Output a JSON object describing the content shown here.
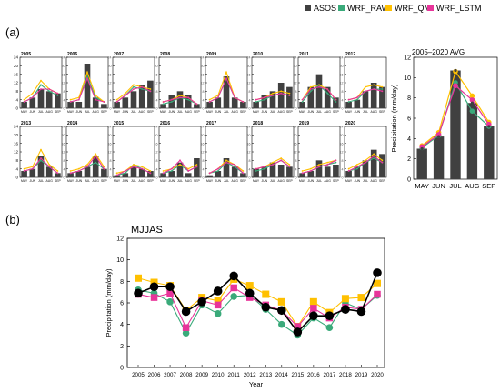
{
  "legend": [
    {
      "name": "ASOS",
      "color": "#404040",
      "shape": "square"
    },
    {
      "name": "WRF_RAW",
      "color": "#3aaa7a",
      "shape": "square"
    },
    {
      "name": "WRF_QM",
      "color": "#ffc000",
      "shape": "square"
    },
    {
      "name": "WRF_LSTM",
      "color": "#e8349a",
      "shape": "square"
    }
  ],
  "panel_labels": {
    "a": "(a)",
    "b": "(b)"
  },
  "chart_data": [
    {
      "type": "bar",
      "id": "yearly-small-multiples",
      "categories": [
        "MAY",
        "JUN",
        "JUL",
        "AUG",
        "SEP"
      ],
      "ylim": [
        0,
        24
      ],
      "yticks": [
        0,
        4,
        8,
        12,
        16,
        20,
        24
      ],
      "panels": [
        {
          "title": "2005",
          "ASOS": [
            3,
            5,
            9,
            8,
            7
          ],
          "WRF_RAW": [
            3,
            5,
            11,
            8,
            6
          ],
          "WRF_QM": [
            4,
            7,
            13,
            9,
            7
          ],
          "WRF_LSTM": [
            3,
            5,
            9,
            9,
            7
          ]
        },
        {
          "title": "2006",
          "ASOS": [
            3,
            3,
            21,
            5,
            2
          ],
          "WRF_RAW": [
            3,
            4,
            15,
            5,
            3
          ],
          "WRF_QM": [
            4,
            5,
            17,
            6,
            3
          ],
          "WRF_LSTM": [
            3,
            4,
            14,
            4,
            3
          ]
        },
        {
          "title": "2007",
          "ASOS": [
            3,
            5,
            8,
            11,
            13
          ],
          "WRF_RAW": [
            3,
            6,
            10,
            9,
            8
          ],
          "WRF_QM": [
            4,
            7,
            11,
            10,
            9
          ],
          "WRF_LSTM": [
            3,
            6,
            9,
            10,
            8
          ]
        },
        {
          "title": "2008",
          "ASOS": [
            2,
            6,
            8,
            6,
            2
          ],
          "WRF_RAW": [
            2,
            3,
            5,
            4,
            2
          ],
          "WRF_QM": [
            3,
            4,
            6,
            5,
            2
          ],
          "WRF_LSTM": [
            3,
            4,
            5,
            5,
            2
          ]
        },
        {
          "title": "2009",
          "ASOS": [
            3,
            5,
            15,
            5,
            3
          ],
          "WRF_RAW": [
            3,
            5,
            14,
            5,
            3
          ],
          "WRF_QM": [
            4,
            6,
            17,
            5,
            3
          ],
          "WRF_LSTM": [
            3,
            5,
            14,
            5,
            3
          ]
        },
        {
          "title": "2010",
          "ASOS": [
            3,
            6,
            8,
            12,
            10
          ],
          "WRF_RAW": [
            3,
            4,
            6,
            7,
            6
          ],
          "WRF_QM": [
            4,
            5,
            7,
            8,
            7
          ],
          "WRF_LSTM": [
            4,
            5,
            6,
            7,
            6
          ]
        },
        {
          "title": "2011",
          "ASOS": [
            3,
            10,
            16,
            10,
            5
          ],
          "WRF_RAW": [
            3,
            8,
            11,
            7,
            3
          ],
          "WRF_QM": [
            4,
            10,
            11,
            9,
            4
          ],
          "WRF_LSTM": [
            4,
            9,
            10,
            9,
            4
          ]
        },
        {
          "title": "2012",
          "ASOS": [
            3,
            4,
            8,
            12,
            10
          ],
          "WRF_RAW": [
            3,
            4,
            8,
            9,
            9
          ],
          "WRF_QM": [
            4,
            5,
            10,
            11,
            10
          ],
          "WRF_LSTM": [
            4,
            5,
            8,
            9,
            8
          ]
        },
        {
          "title": "2013",
          "ASOS": [
            3,
            4,
            10,
            5,
            2
          ],
          "WRF_RAW": [
            3,
            4,
            8,
            5,
            2
          ],
          "WRF_QM": [
            4,
            5,
            13,
            6,
            3
          ],
          "WRF_LSTM": [
            3,
            4,
            9,
            5,
            2
          ]
        },
        {
          "title": "2014",
          "ASOS": [
            2,
            3,
            5,
            10,
            4
          ],
          "WRF_RAW": [
            2,
            3,
            5,
            7,
            4
          ],
          "WRF_QM": [
            3,
            4,
            6,
            11,
            5
          ],
          "WRF_LSTM": [
            2,
            3,
            5,
            10,
            4
          ]
        },
        {
          "title": "2015",
          "ASOS": [
            1,
            2,
            5,
            4,
            3
          ],
          "WRF_RAW": [
            1,
            2,
            6,
            4,
            2
          ],
          "WRF_QM": [
            2,
            3,
            6,
            5,
            3
          ],
          "WRF_LSTM": [
            1,
            3,
            5,
            4,
            2
          ]
        },
        {
          "title": "2016",
          "ASOS": [
            2,
            3,
            7,
            2,
            9
          ],
          "WRF_RAW": [
            2,
            3,
            6,
            3,
            5
          ],
          "WRF_QM": [
            3,
            4,
            6,
            4,
            6
          ],
          "WRF_LSTM": [
            2,
            4,
            8,
            3,
            5
          ]
        },
        {
          "title": "2017",
          "ASOS": [
            1,
            3,
            9,
            5,
            2
          ],
          "WRF_RAW": [
            2,
            3,
            7,
            5,
            2
          ],
          "WRF_QM": [
            2,
            4,
            8,
            6,
            3
          ],
          "WRF_LSTM": [
            2,
            4,
            7,
            6,
            2
          ]
        },
        {
          "title": "2018",
          "ASOS": [
            4,
            5,
            7,
            6,
            5
          ],
          "WRF_RAW": [
            3,
            4,
            6,
            8,
            5
          ],
          "WRF_QM": [
            4,
            5,
            7,
            9,
            6
          ],
          "WRF_LSTM": [
            4,
            5,
            6,
            8,
            5
          ]
        },
        {
          "title": "2019",
          "ASOS": [
            2,
            3,
            8,
            5,
            6
          ],
          "WRF_RAW": [
            2,
            3,
            5,
            6,
            7
          ],
          "WRF_QM": [
            3,
            4,
            6,
            7,
            8
          ],
          "WRF_LSTM": [
            2,
            3,
            5,
            6,
            8
          ]
        },
        {
          "title": "2020",
          "ASOS": [
            3,
            5,
            8,
            13,
            11
          ],
          "WRF_RAW": [
            3,
            4,
            7,
            9,
            7
          ],
          "WRF_QM": [
            4,
            6,
            8,
            11,
            8
          ],
          "WRF_LSTM": [
            3,
            5,
            7,
            10,
            7
          ]
        }
      ]
    },
    {
      "type": "bar",
      "id": "avg-panel",
      "title": "2005–2020 AVG",
      "categories": [
        "MAY",
        "JUN",
        "JUL",
        "AUG",
        "SEP"
      ],
      "ylabel": "Precipitation (mm/day)",
      "ylim": [
        0,
        12
      ],
      "yticks": [
        0,
        2,
        4,
        6,
        8,
        10,
        12
      ],
      "series": [
        {
          "name": "ASOS",
          "values": [
            3.0,
            4.2,
            10.7,
            7.5,
            5.2
          ]
        },
        {
          "name": "WRF_RAW",
          "values": [
            3.1,
            4.3,
            9.5,
            6.7,
            5.2
          ]
        },
        {
          "name": "WRF_QM",
          "values": [
            3.3,
            4.6,
            10.6,
            8.2,
            5.6
          ]
        },
        {
          "name": "WRF_LSTM",
          "values": [
            3.2,
            4.4,
            9.2,
            7.8,
            5.4
          ]
        }
      ]
    },
    {
      "type": "line",
      "id": "mjjas",
      "title": "MJJAS",
      "xlabel": "Year",
      "ylabel": "Precipitation (mm/day)",
      "x": [
        "2005",
        "2006",
        "2007",
        "2008",
        "2009",
        "2010",
        "2011",
        "2012",
        "2013",
        "2014",
        "2015",
        "2016",
        "2017",
        "2018",
        "2019",
        "2020"
      ],
      "ylim": [
        0,
        12
      ],
      "yticks": [
        0,
        2,
        4,
        6,
        8,
        10,
        12
      ],
      "series": [
        {
          "name": "ASOS",
          "values": [
            6.9,
            7.5,
            7.5,
            5.2,
            6.1,
            7.1,
            8.5,
            6.9,
            5.6,
            5.3,
            3.3,
            4.8,
            4.8,
            5.4,
            5.2,
            8.8
          ]
        },
        {
          "name": "WRF_RAW",
          "values": [
            7.2,
            6.9,
            6.1,
            3.2,
            5.8,
            5.0,
            6.6,
            6.7,
            5.4,
            4.0,
            3.0,
            4.6,
            3.7,
            6.0,
            5.4,
            6.7
          ]
        },
        {
          "name": "WRF_QM",
          "values": [
            8.3,
            7.9,
            7.6,
            5.3,
            6.5,
            6.2,
            8.2,
            7.6,
            6.8,
            6.1,
            3.8,
            6.1,
            5.1,
            6.4,
            6.5,
            7.8
          ]
        },
        {
          "name": "WRF_LSTM",
          "values": [
            6.8,
            6.5,
            6.9,
            3.7,
            6.2,
            5.8,
            7.4,
            6.5,
            5.8,
            5.3,
            3.8,
            5.5,
            4.6,
            5.6,
            5.4,
            6.8
          ]
        }
      ]
    }
  ]
}
